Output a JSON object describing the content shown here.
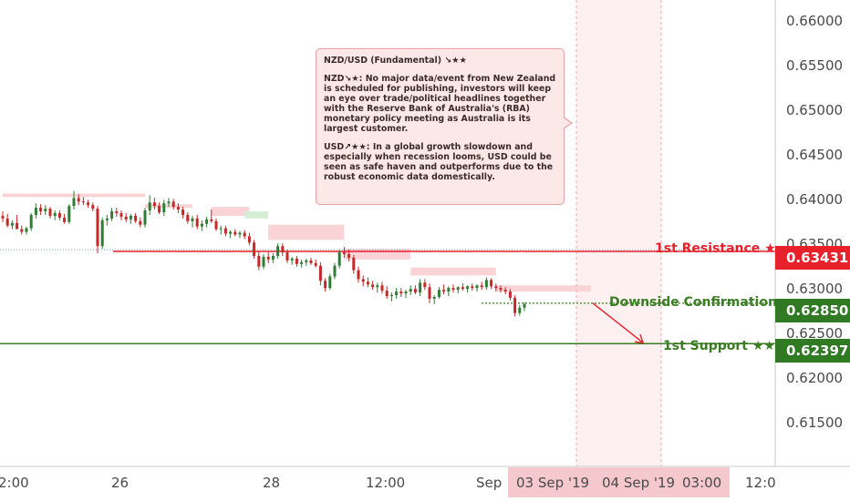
{
  "note": {
    "title": "NZD/USD (Fundamental) ↘★★",
    "nzd": "NZD↘★: No major data/event from New Zealand is scheduled for publishing, investors will keep an eye over trade/political headlines together with the Reserve Bank of Australia's (RBA) monetary policy meeting as Australia is its largest customer.",
    "usd": "USD↗★★: In a global growth slowdown and especially when recession looms, USD could be seen as safe haven and outperforms due to the robust economic data domestically."
  },
  "levels": {
    "resistance": {
      "label": "1st Resistance ★",
      "value": "0.63431",
      "color": "#e8212a"
    },
    "confirmation": {
      "label": "Downside Confirmation",
      "value": "0.62850",
      "color": "#3a7d23"
    },
    "support": {
      "label": "1st Support ★★",
      "value": "0.62397",
      "color": "#3a7d23"
    }
  },
  "x_axis": {
    "labels": [
      "2:00",
      "26",
      "28",
      "12:00",
      "Sep",
      "03 Sep '19",
      "04 Sep '19",
      "03:00",
      "12:0"
    ]
  },
  "chart_data": {
    "type": "candlestick",
    "title": "",
    "y_ticks": [
      "0.66000",
      "0.65500",
      "0.65000",
      "0.64500",
      "0.64000",
      "0.63500",
      "0.63000",
      "0.62500",
      "0.62000",
      "0.61500"
    ],
    "ylim": [
      0.6102,
      0.6625
    ],
    "grid": false,
    "horizontal_levels": [
      0.63431,
      0.6285,
      0.62397
    ],
    "projection": {
      "from": 0.6285,
      "to": 0.62397
    },
    "candles": [
      [
        0.6383,
        0.6388,
        0.6376,
        0.638
      ],
      [
        0.638,
        0.6385,
        0.637,
        0.6372
      ],
      [
        0.6372,
        0.6378,
        0.6368,
        0.6375
      ],
      [
        0.6375,
        0.6384,
        0.637,
        0.6368
      ],
      [
        0.6368,
        0.6372,
        0.6362,
        0.6365
      ],
      [
        0.6365,
        0.6371,
        0.6362,
        0.6369
      ],
      [
        0.6369,
        0.6386,
        0.6366,
        0.6384
      ],
      [
        0.6384,
        0.6397,
        0.638,
        0.6392
      ],
      [
        0.6392,
        0.6396,
        0.6384,
        0.6388
      ],
      [
        0.6388,
        0.6395,
        0.6384,
        0.6391
      ],
      [
        0.6391,
        0.6393,
        0.638,
        0.6383
      ],
      [
        0.6383,
        0.6389,
        0.6378,
        0.6386
      ],
      [
        0.6386,
        0.6389,
        0.6378,
        0.6381
      ],
      [
        0.6381,
        0.6385,
        0.6374,
        0.6376
      ],
      [
        0.6376,
        0.6396,
        0.6374,
        0.6394
      ],
      [
        0.6394,
        0.6411,
        0.639,
        0.6403
      ],
      [
        0.6403,
        0.6407,
        0.6395,
        0.6399
      ],
      [
        0.6399,
        0.6404,
        0.6395,
        0.6398
      ],
      [
        0.6398,
        0.6401,
        0.6392,
        0.6395
      ],
      [
        0.6395,
        0.6398,
        0.6388,
        0.6391
      ],
      [
        0.6391,
        0.6394,
        0.6341,
        0.6349
      ],
      [
        0.6349,
        0.6381,
        0.6346,
        0.6378
      ],
      [
        0.6378,
        0.6384,
        0.6372,
        0.638
      ],
      [
        0.638,
        0.6392,
        0.6377,
        0.6388
      ],
      [
        0.6388,
        0.6392,
        0.6382,
        0.6386
      ],
      [
        0.6386,
        0.6389,
        0.6378,
        0.6382
      ],
      [
        0.6382,
        0.6386,
        0.6376,
        0.6379
      ],
      [
        0.6379,
        0.6385,
        0.6374,
        0.6383
      ],
      [
        0.6383,
        0.6386,
        0.6375,
        0.6377
      ],
      [
        0.6377,
        0.6381,
        0.637,
        0.6373
      ],
      [
        0.6373,
        0.6392,
        0.637,
        0.6389
      ],
      [
        0.6389,
        0.6406,
        0.6384,
        0.6398
      ],
      [
        0.6398,
        0.6403,
        0.639,
        0.6394
      ],
      [
        0.6394,
        0.6398,
        0.6385,
        0.6387
      ],
      [
        0.6387,
        0.6401,
        0.6383,
        0.6397
      ],
      [
        0.6397,
        0.6403,
        0.6393,
        0.6399
      ],
      [
        0.6399,
        0.6402,
        0.639,
        0.6393
      ],
      [
        0.6393,
        0.6397,
        0.6386,
        0.639
      ],
      [
        0.639,
        0.6393,
        0.638,
        0.6384
      ],
      [
        0.6384,
        0.6387,
        0.6374,
        0.6377
      ],
      [
        0.6377,
        0.6383,
        0.637,
        0.638
      ],
      [
        0.638,
        0.6384,
        0.6368,
        0.6371
      ],
      [
        0.6371,
        0.6378,
        0.6366,
        0.6374
      ],
      [
        0.6374,
        0.6382,
        0.637,
        0.6379
      ],
      [
        0.6379,
        0.639,
        0.6375,
        0.6377
      ],
      [
        0.6377,
        0.638,
        0.6366,
        0.6368
      ],
      [
        0.6368,
        0.6372,
        0.6362,
        0.6369
      ],
      [
        0.6369,
        0.6372,
        0.636,
        0.6363
      ],
      [
        0.6363,
        0.6367,
        0.6358,
        0.6365
      ],
      [
        0.6365,
        0.6368,
        0.636,
        0.6362
      ],
      [
        0.6362,
        0.6366,
        0.6358,
        0.6364
      ],
      [
        0.6364,
        0.6367,
        0.6357,
        0.636
      ],
      [
        0.636,
        0.6364,
        0.635,
        0.6353
      ],
      [
        0.6353,
        0.6356,
        0.6335,
        0.6338
      ],
      [
        0.6338,
        0.6343,
        0.6322,
        0.6326
      ],
      [
        0.6326,
        0.634,
        0.6323,
        0.6337
      ],
      [
        0.6337,
        0.6342,
        0.633,
        0.6334
      ],
      [
        0.6334,
        0.6341,
        0.633,
        0.6338
      ],
      [
        0.6338,
        0.6352,
        0.6335,
        0.6349
      ],
      [
        0.6349,
        0.6352,
        0.6338,
        0.6342
      ],
      [
        0.6342,
        0.6345,
        0.633,
        0.6333
      ],
      [
        0.6333,
        0.6337,
        0.6328,
        0.6335
      ],
      [
        0.6335,
        0.6338,
        0.6326,
        0.6329
      ],
      [
        0.6329,
        0.6334,
        0.6325,
        0.6331
      ],
      [
        0.6331,
        0.6335,
        0.6327,
        0.6333
      ],
      [
        0.6333,
        0.6336,
        0.6328,
        0.633
      ],
      [
        0.633,
        0.6334,
        0.6325,
        0.6327
      ],
      [
        0.6327,
        0.6331,
        0.6305,
        0.631
      ],
      [
        0.631,
        0.6313,
        0.6298,
        0.6302
      ],
      [
        0.6302,
        0.6318,
        0.63,
        0.6315
      ],
      [
        0.6315,
        0.633,
        0.6312,
        0.6327
      ],
      [
        0.6327,
        0.6345,
        0.6324,
        0.6342
      ],
      [
        0.6342,
        0.6348,
        0.6336,
        0.634
      ],
      [
        0.634,
        0.6345,
        0.6332,
        0.6336
      ],
      [
        0.6336,
        0.6339,
        0.6318,
        0.6322
      ],
      [
        0.6322,
        0.6326,
        0.6308,
        0.6312
      ],
      [
        0.6312,
        0.6316,
        0.6304,
        0.6309
      ],
      [
        0.6309,
        0.6314,
        0.6303,
        0.6306
      ],
      [
        0.6306,
        0.631,
        0.63,
        0.6303
      ],
      [
        0.6303,
        0.6308,
        0.6297,
        0.6305
      ],
      [
        0.6305,
        0.6309,
        0.6296,
        0.6299
      ],
      [
        0.6299,
        0.6304,
        0.629,
        0.6293
      ],
      [
        0.6293,
        0.6297,
        0.6287,
        0.6294
      ],
      [
        0.6294,
        0.6302,
        0.629,
        0.6298
      ],
      [
        0.6298,
        0.6302,
        0.6292,
        0.6296
      ],
      [
        0.6296,
        0.63,
        0.6291,
        0.6298
      ],
      [
        0.6298,
        0.6305,
        0.6294,
        0.6301
      ],
      [
        0.6301,
        0.6305,
        0.6295,
        0.6297
      ],
      [
        0.6297,
        0.6312,
        0.6293,
        0.6308
      ],
      [
        0.6308,
        0.6312,
        0.63,
        0.6303
      ],
      [
        0.6303,
        0.6307,
        0.6285,
        0.629
      ],
      [
        0.629,
        0.6294,
        0.6284,
        0.6292
      ],
      [
        0.6292,
        0.6303,
        0.629,
        0.63
      ],
      [
        0.63,
        0.6306,
        0.6295,
        0.6298
      ],
      [
        0.6298,
        0.6304,
        0.6293,
        0.6302
      ],
      [
        0.6302,
        0.6306,
        0.6297,
        0.63
      ],
      [
        0.63,
        0.6304,
        0.6296,
        0.6303
      ],
      [
        0.6303,
        0.6307,
        0.6299,
        0.6301
      ],
      [
        0.6301,
        0.6305,
        0.6297,
        0.6304
      ],
      [
        0.6304,
        0.6307,
        0.6299,
        0.6302
      ],
      [
        0.6302,
        0.6306,
        0.6298,
        0.6305
      ],
      [
        0.6305,
        0.6309,
        0.63,
        0.6303
      ],
      [
        0.6303,
        0.6314,
        0.63,
        0.6311
      ],
      [
        0.6311,
        0.6313,
        0.6301,
        0.6304
      ],
      [
        0.6304,
        0.6307,
        0.6298,
        0.6302
      ],
      [
        0.6302,
        0.6305,
        0.6297,
        0.63
      ],
      [
        0.63,
        0.6303,
        0.6295,
        0.6298
      ],
      [
        0.6298,
        0.6301,
        0.6288,
        0.6291
      ],
      [
        0.6291,
        0.6294,
        0.627,
        0.6274
      ],
      [
        0.6274,
        0.6283,
        0.6271,
        0.628
      ],
      [
        0.628,
        0.6286,
        0.6276,
        0.6284
      ]
    ],
    "cloud_segments": [
      {
        "from": 0,
        "to": 30,
        "upper": 0.6408,
        "lower": 0.6404,
        "color": "#f9d3d6"
      },
      {
        "from": 30,
        "to": 40,
        "upper": 0.6396,
        "lower": 0.6392,
        "color": "#f9d3d6"
      },
      {
        "from": 44,
        "to": 52,
        "upper": 0.6393,
        "lower": 0.6383,
        "color": "#f9d3d6"
      },
      {
        "from": 51,
        "to": 56,
        "upper": 0.6388,
        "lower": 0.638,
        "color": "#d6edd5"
      },
      {
        "from": 56,
        "to": 72,
        "upper": 0.6373,
        "lower": 0.6356,
        "color": "#f9d3d6"
      },
      {
        "from": 72,
        "to": 86,
        "upper": 0.6346,
        "lower": 0.6334,
        "color": "#f9d3d6"
      },
      {
        "from": 86,
        "to": 104,
        "upper": 0.6325,
        "lower": 0.6316,
        "color": "#f9d3d6"
      },
      {
        "from": 104,
        "to": 124,
        "upper": 0.6305,
        "lower": 0.6298,
        "color": "#f9d3d6"
      }
    ]
  }
}
